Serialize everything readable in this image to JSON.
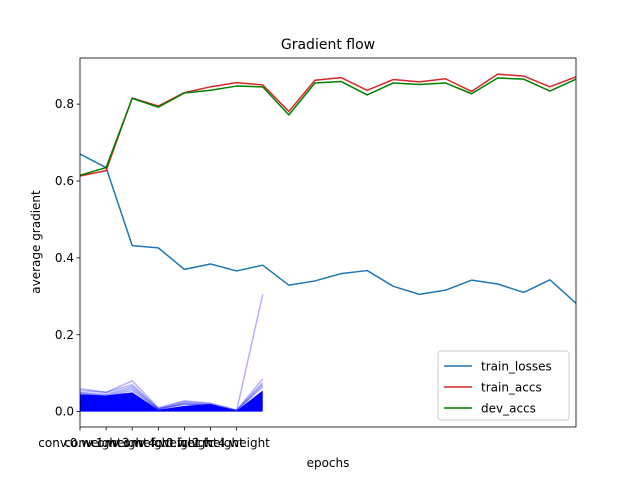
{
  "chart_data": {
    "type": "line",
    "title": "Gradient flow",
    "xlabel": "epochs",
    "ylabel": "average gradient",
    "xlim": [
      0,
      19
    ],
    "ylim": [
      -0.04,
      0.92
    ],
    "y_ticks": [
      0.0,
      0.2,
      0.4,
      0.6,
      0.8
    ],
    "x_tick_labels": [
      "conv.0.weight",
      "conv.1.weight",
      "conv.3.weight",
      "conv.4.weight",
      "fc.0.weight",
      "fc.2.weight",
      "fc.4.weight"
    ],
    "grid": false,
    "legend": "lower-right",
    "series": [
      {
        "name": "train_losses",
        "color": "#1f77b4",
        "values": [
          0.67,
          0.635,
          0.432,
          0.426,
          0.37,
          0.384,
          0.366,
          0.381,
          0.329,
          0.34,
          0.359,
          0.367,
          0.326,
          0.305,
          0.316,
          0.342,
          0.332,
          0.31,
          0.343,
          0.282
        ]
      },
      {
        "name": "train_accs",
        "color": "#d62728",
        "values": [
          0.613,
          0.627,
          0.816,
          0.795,
          0.83,
          0.845,
          0.856,
          0.85,
          0.781,
          0.862,
          0.869,
          0.836,
          0.864,
          0.858,
          0.866,
          0.833,
          0.878,
          0.873,
          0.845,
          0.871
        ]
      },
      {
        "name": "dev_accs",
        "color": "#008000",
        "values": [
          0.615,
          0.635,
          0.815,
          0.792,
          0.829,
          0.836,
          0.847,
          0.845,
          0.772,
          0.855,
          0.859,
          0.824,
          0.855,
          0.851,
          0.855,
          0.827,
          0.868,
          0.865,
          0.834,
          0.865
        ]
      }
    ],
    "gradient_bars": {
      "max_color": "#0000ff",
      "avg_color": "#0000ff",
      "max_lines": [
        [
          0.055,
          0.05,
          0.07,
          0.008,
          0.025,
          0.02,
          0.003,
          0.075
        ],
        [
          0.06,
          0.05,
          0.08,
          0.01,
          0.028,
          0.022,
          0.004,
          0.085
        ],
        [
          0.05,
          0.045,
          0.065,
          0.007,
          0.022,
          0.018,
          0.003,
          0.305
        ],
        [
          0.048,
          0.042,
          0.06,
          0.006,
          0.02,
          0.017,
          0.003,
          0.07
        ],
        [
          0.046,
          0.04,
          0.055,
          0.006,
          0.019,
          0.016,
          0.002,
          0.065
        ]
      ],
      "avg_fill": [
        0.045,
        0.042,
        0.05,
        0.005,
        0.015,
        0.02,
        0.002,
        0.055
      ],
      "zero_line_end": 7
    }
  }
}
